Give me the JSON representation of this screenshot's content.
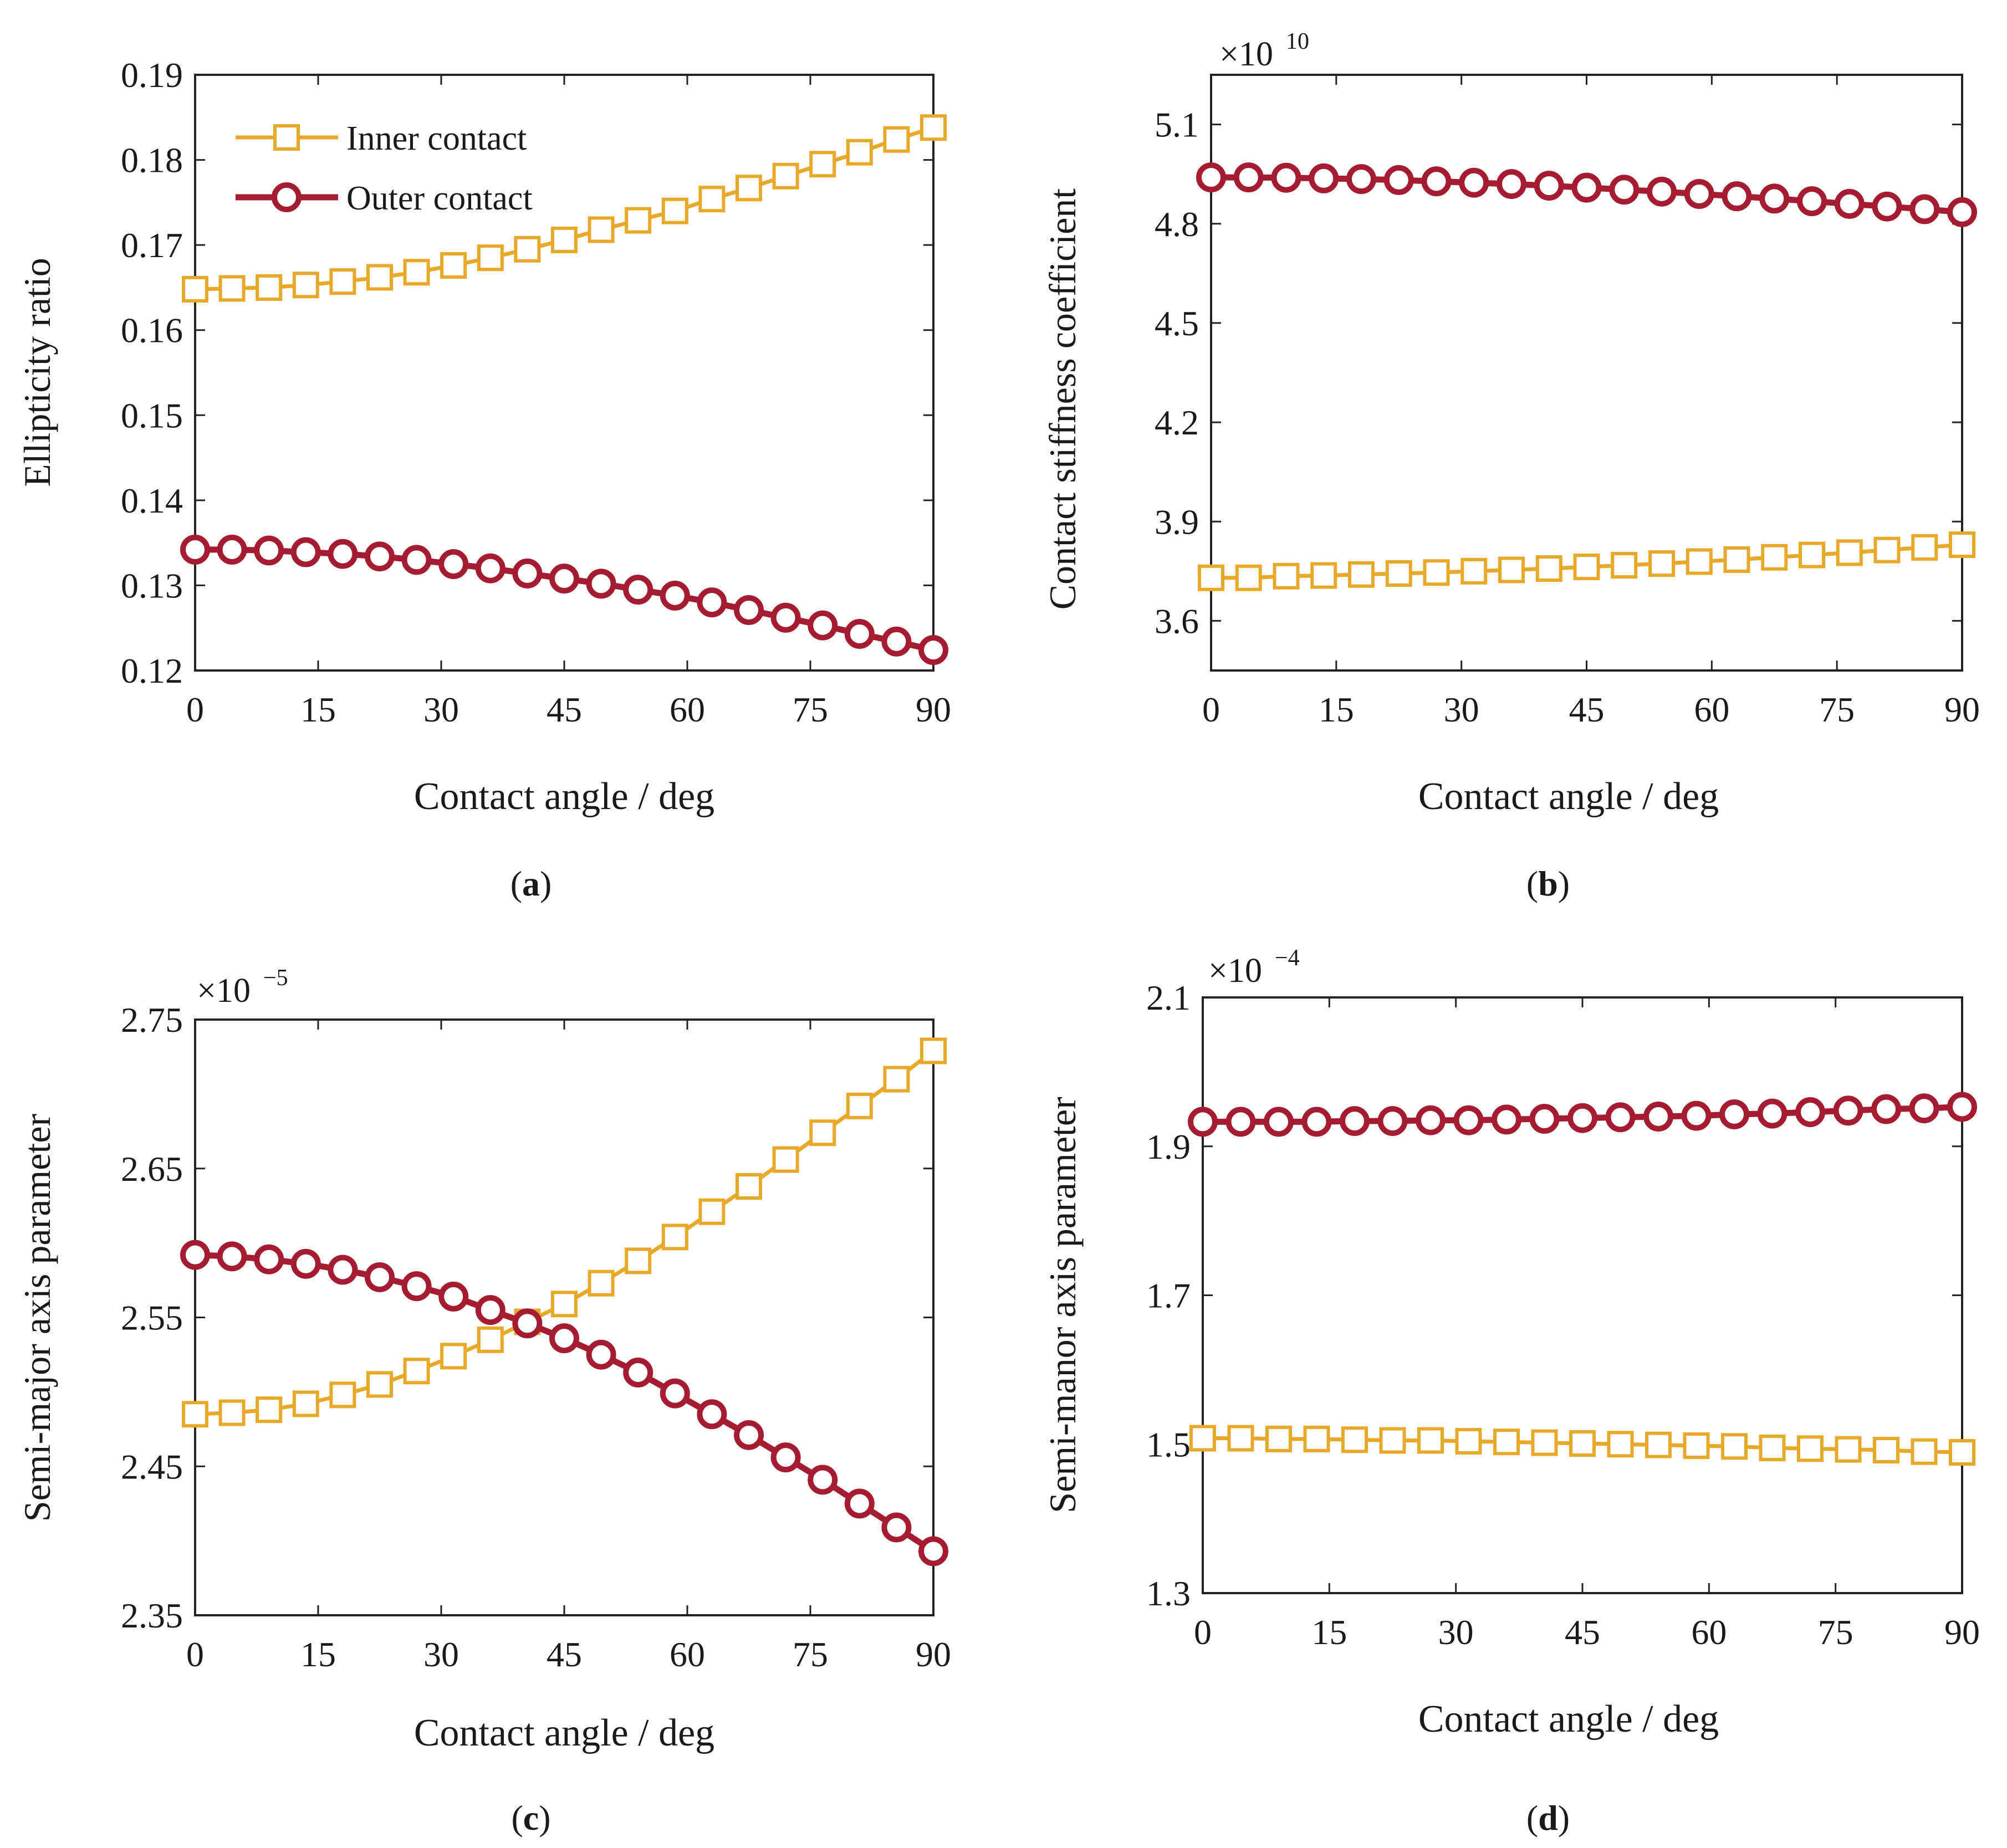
{
  "colors": {
    "inner": "#E8A92A",
    "outer": "#A51C30",
    "axis": "#222222"
  },
  "legend": {
    "inner": "Inner contact",
    "outer": "Outer contact"
  },
  "chart_data": [
    {
      "id": "a",
      "type": "line",
      "panel_label": "a",
      "xlabel": "Contact angle / deg",
      "ylabel": "Ellipticity ratio",
      "multiplier": "",
      "multiplier_exp": "",
      "xlim": [
        0,
        90
      ],
      "ylim": [
        0.12,
        0.19
      ],
      "xticks": [
        0,
        15,
        30,
        45,
        60,
        75,
        90
      ],
      "yticks": [
        "0.12",
        "0.13",
        "0.14",
        "0.15",
        "0.16",
        "0.17",
        "0.18",
        "0.19"
      ],
      "x": [
        0,
        4.5,
        9,
        13.5,
        18,
        22.5,
        27,
        31.5,
        36,
        40.5,
        45,
        49.5,
        54,
        58.5,
        63,
        67.5,
        72,
        76.5,
        81,
        85.5,
        90
      ],
      "series": [
        {
          "name": "Inner contact",
          "marker": "square",
          "values": [
            0.1648,
            0.1649,
            0.165,
            0.1653,
            0.1657,
            0.1662,
            0.1668,
            0.1676,
            0.1685,
            0.1695,
            0.1706,
            0.1718,
            0.1729,
            0.174,
            0.1754,
            0.1767,
            0.1781,
            0.1795,
            0.1809,
            0.1824,
            0.1838
          ]
        },
        {
          "name": "Outer contact",
          "marker": "circle",
          "values": [
            0.1342,
            0.1342,
            0.1341,
            0.1339,
            0.1337,
            0.1334,
            0.133,
            0.1325,
            0.132,
            0.1314,
            0.1308,
            0.1302,
            0.1295,
            0.1288,
            0.128,
            0.1271,
            0.1262,
            0.1253,
            0.1243,
            0.1234,
            0.1224
          ]
        }
      ]
    },
    {
      "id": "b",
      "type": "line",
      "panel_label": "b",
      "xlabel": "Contact angle / deg",
      "ylabel": "Contact stiffness coefficient",
      "multiplier": "×10",
      "multiplier_exp": "10",
      "xlim": [
        0,
        90
      ],
      "ylim": [
        3.45,
        5.25
      ],
      "xticks": [
        0,
        15,
        30,
        45,
        60,
        75,
        90
      ],
      "yticks": [
        "3.6",
        "3.9",
        "4.2",
        "4.5",
        "4.8",
        "5.1"
      ],
      "x": [
        0,
        4.5,
        9,
        13.5,
        18,
        22.5,
        27,
        31.5,
        36,
        40.5,
        45,
        49.5,
        54,
        58.5,
        63,
        67.5,
        72,
        76.5,
        81,
        85.5,
        90
      ],
      "series": [
        {
          "name": "Inner contact",
          "marker": "square",
          "values": [
            3.73,
            3.73,
            3.735,
            3.737,
            3.74,
            3.743,
            3.746,
            3.75,
            3.754,
            3.758,
            3.763,
            3.768,
            3.773,
            3.779,
            3.785,
            3.792,
            3.799,
            3.806,
            3.814,
            3.822,
            3.83
          ]
        },
        {
          "name": "Outer contact",
          "marker": "circle",
          "values": [
            4.94,
            4.94,
            4.939,
            4.937,
            4.935,
            4.932,
            4.928,
            4.924,
            4.92,
            4.915,
            4.909,
            4.903,
            4.897,
            4.89,
            4.883,
            4.876,
            4.868,
            4.86,
            4.852,
            4.844,
            4.835
          ]
        }
      ]
    },
    {
      "id": "c",
      "type": "line",
      "panel_label": "c",
      "xlabel": "Contact angle / deg",
      "ylabel": "Semi-major axis parameter",
      "multiplier": "×10",
      "multiplier_exp": "−5",
      "xlim": [
        0,
        90
      ],
      "ylim": [
        2.35,
        2.75
      ],
      "xticks": [
        0,
        15,
        30,
        45,
        60,
        75,
        90
      ],
      "yticks": [
        "2.35",
        "2.45",
        "2.55",
        "2.65",
        "2.75"
      ],
      "x": [
        0,
        4.5,
        9,
        13.5,
        18,
        22.5,
        27,
        31.5,
        36,
        40.5,
        45,
        49.5,
        54,
        58.5,
        63,
        67.5,
        72,
        76.5,
        81,
        85.5,
        90
      ],
      "series": [
        {
          "name": "Inner contact",
          "marker": "square",
          "values": [
            2.485,
            2.486,
            2.488,
            2.492,
            2.498,
            2.505,
            2.514,
            2.524,
            2.535,
            2.547,
            2.559,
            2.573,
            2.588,
            2.604,
            2.621,
            2.638,
            2.656,
            2.674,
            2.692,
            2.71,
            2.729
          ]
        },
        {
          "name": "Outer contact",
          "marker": "circle",
          "values": [
            2.592,
            2.591,
            2.589,
            2.586,
            2.582,
            2.577,
            2.571,
            2.564,
            2.555,
            2.546,
            2.536,
            2.525,
            2.513,
            2.499,
            2.485,
            2.471,
            2.456,
            2.441,
            2.425,
            2.409,
            2.393
          ]
        }
      ]
    },
    {
      "id": "d",
      "type": "line",
      "panel_label": "d",
      "xlabel": "Contact angle / deg",
      "ylabel": "Semi-manor axis parameter",
      "multiplier": "×10",
      "multiplier_exp": "−4",
      "xlim": [
        0,
        90
      ],
      "ylim": [
        1.3,
        2.1
      ],
      "xticks": [
        0,
        15,
        30,
        45,
        60,
        75,
        90
      ],
      "yticks": [
        "1.3",
        "1.5",
        "1.7",
        "1.9",
        "2.1"
      ],
      "x": [
        0,
        4.5,
        9,
        13.5,
        18,
        22.5,
        27,
        31.5,
        36,
        40.5,
        45,
        49.5,
        54,
        58.5,
        63,
        67.5,
        72,
        76.5,
        81,
        85.5,
        90
      ],
      "series": [
        {
          "name": "Inner contact",
          "marker": "square",
          "values": [
            1.508,
            1.508,
            1.507,
            1.507,
            1.506,
            1.505,
            1.505,
            1.504,
            1.503,
            1.502,
            1.501,
            1.5,
            1.499,
            1.498,
            1.497,
            1.495,
            1.494,
            1.493,
            1.492,
            1.49,
            1.489
          ]
        },
        {
          "name": "Outer contact",
          "marker": "circle",
          "values": [
            1.933,
            1.933,
            1.933,
            1.933,
            1.934,
            1.934,
            1.935,
            1.935,
            1.936,
            1.937,
            1.938,
            1.939,
            1.94,
            1.941,
            1.943,
            1.944,
            1.946,
            1.948,
            1.95,
            1.951,
            1.953
          ]
        }
      ]
    }
  ]
}
